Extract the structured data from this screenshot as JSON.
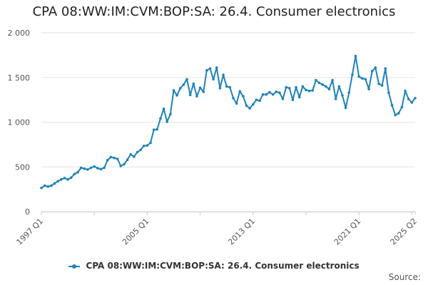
{
  "chart_data": {
    "type": "line",
    "title": "CPA 08:WW:IM:CVM:BOP:SA: 26.4. Consumer electronics",
    "series_name": "CPA 08:WW:IM:CVM:BOP:SA: 26.4. Consumer electronics",
    "color": "#1f83b8",
    "ylim": [
      0,
      2000
    ],
    "yticks": [
      0,
      500,
      1000,
      1500,
      2000
    ],
    "ytick_labels": [
      "0",
      "500",
      "1 000",
      "1 500",
      "2 000"
    ],
    "xticks": [
      {
        "label": "1997 Q1",
        "index": 0
      },
      {
        "label": "2005 Q1",
        "index": 32
      },
      {
        "label": "2013 Q1",
        "index": 64
      },
      {
        "label": "2021 Q1",
        "index": 96
      },
      {
        "label": "2025 Q2",
        "index": 113
      }
    ],
    "start": "1997 Q1",
    "end": "2025 Q2",
    "values": [
      265,
      290,
      280,
      290,
      315,
      340,
      360,
      375,
      360,
      380,
      420,
      440,
      490,
      480,
      470,
      490,
      505,
      485,
      475,
      490,
      575,
      610,
      600,
      590,
      510,
      530,
      580,
      640,
      615,
      665,
      690,
      735,
      740,
      770,
      915,
      920,
      1040,
      1150,
      1005,
      1090,
      1355,
      1300,
      1380,
      1420,
      1480,
      1305,
      1430,
      1290,
      1385,
      1340,
      1580,
      1600,
      1480,
      1610,
      1380,
      1530,
      1400,
      1390,
      1270,
      1210,
      1345,
      1290,
      1185,
      1155,
      1200,
      1250,
      1240,
      1310,
      1310,
      1335,
      1310,
      1340,
      1330,
      1260,
      1390,
      1380,
      1250,
      1390,
      1280,
      1400,
      1360,
      1350,
      1355,
      1470,
      1440,
      1420,
      1400,
      1370,
      1470,
      1260,
      1400,
      1300,
      1160,
      1330,
      1530,
      1740,
      1510,
      1490,
      1480,
      1370,
      1570,
      1610,
      1430,
      1410,
      1600,
      1330,
      1190,
      1080,
      1100,
      1170,
      1350,
      1260,
      1220,
      1270
    ]
  },
  "legend": {
    "label": "CPA 08:WW:IM:CVM:BOP:SA: 26.4. Consumer electronics"
  },
  "footer": {
    "source_label": "Source:"
  }
}
